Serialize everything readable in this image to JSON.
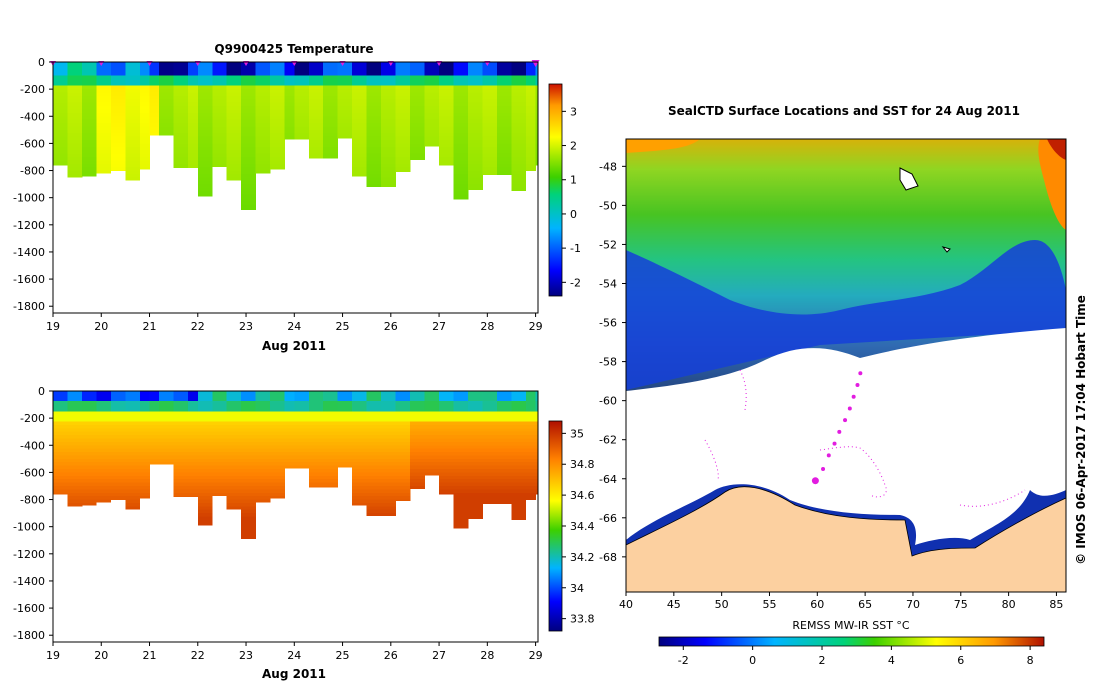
{
  "chart_data": [
    {
      "type": "heatmap",
      "title": "Q9900425  Temperature",
      "xlabel": "Aug 2011",
      "ylabel": "",
      "x_ticks": [
        "19",
        "20",
        "21",
        "22",
        "23",
        "24",
        "25",
        "26",
        "27",
        "28",
        "29"
      ],
      "xlim": [
        19,
        29.05
      ],
      "y_ticks": [
        "0",
        "-200",
        "-400",
        "-600",
        "-800",
        "-1000",
        "-1200",
        "-1400",
        "-1600",
        "-1800"
      ],
      "ylim": [
        -1850,
        0
      ],
      "profile_times": [
        19.0,
        19.3,
        19.6,
        19.9,
        20.2,
        20.5,
        20.8,
        21.0,
        21.2,
        21.5,
        21.8,
        22.0,
        22.3,
        22.6,
        22.9,
        23.2,
        23.5,
        23.8,
        24.0,
        24.3,
        24.6,
        24.9,
        25.2,
        25.5,
        25.8,
        26.1,
        26.4,
        26.7,
        27.0,
        27.3,
        27.6,
        27.9,
        28.2,
        28.5,
        28.8,
        29.0
      ],
      "profile_max_depth": [
        -760,
        -850,
        -840,
        -820,
        -800,
        -870,
        -790,
        -540,
        -540,
        -780,
        -780,
        -990,
        -770,
        -870,
        -1090,
        -820,
        -790,
        -570,
        -570,
        -710,
        -710,
        -560,
        -840,
        -920,
        -920,
        -810,
        -720,
        -620,
        -760,
        -1010,
        -940,
        -830,
        -830,
        -950,
        -800,
        -760
      ],
      "surface_markers_day": [
        19.0,
        20.0,
        21.0,
        22.0,
        23.0,
        24.0,
        25.0,
        26.0,
        27.0,
        28.0,
        29.0
      ],
      "colorbar": {
        "ticks": [
          "3",
          "2",
          "1",
          "0",
          "-1",
          "-2"
        ],
        "range": [
          -2.4,
          3.8
        ]
      }
    },
    {
      "type": "heatmap",
      "title": "",
      "xlabel": "Aug 2011",
      "ylabel": "",
      "x_ticks": [
        "19",
        "20",
        "21",
        "22",
        "23",
        "24",
        "25",
        "26",
        "27",
        "28",
        "29"
      ],
      "xlim": [
        19,
        29.05
      ],
      "y_ticks": [
        "0",
        "-200",
        "-400",
        "-600",
        "-800",
        "-1000",
        "-1200",
        "-1400",
        "-1600",
        "-1800"
      ],
      "ylim": [
        -1850,
        0
      ],
      "colorbar": {
        "ticks": [
          "35",
          "34.8",
          "34.6",
          "34.4",
          "34.2",
          "34",
          "33.8"
        ],
        "range": [
          33.72,
          35.08
        ]
      }
    },
    {
      "type": "heatmap",
      "title": "SealCTD Surface Locations and SST for 24 Aug 2011",
      "xlabel": "",
      "ylabel": "",
      "x_ticks": [
        "40",
        "45",
        "50",
        "55",
        "60",
        "65",
        "70",
        "75",
        "80",
        "85"
      ],
      "xlim": [
        40,
        86
      ],
      "y_ticks": [
        "-48",
        "-50",
        "-52",
        "-54",
        "-56",
        "-58",
        "-60",
        "-62",
        "-64",
        "-66",
        "-68"
      ],
      "ylim": [
        -69.8,
        -46.6
      ],
      "track_lon": [
        59.8,
        60.6,
        61.2,
        61.8,
        62.3,
        62.9,
        63.4,
        63.8,
        64.2,
        64.5
      ],
      "track_lat": [
        -64.1,
        -63.5,
        -62.8,
        -62.2,
        -61.6,
        -61.0,
        -60.4,
        -59.8,
        -59.2,
        -58.6
      ],
      "current_position": {
        "lon": 59.8,
        "lat": -64.1
      },
      "colorbar": {
        "label": "REMSS MW-IR SST °C",
        "ticks": [
          "-2",
          "0",
          "2",
          "4",
          "6",
          "8"
        ],
        "range": [
          -2.7,
          8.4
        ]
      }
    }
  ],
  "credit": "© IMOS 06-Apr-2017 17:04 Hobart Time",
  "colors": {
    "marker": "#e21ce0",
    "land": "#fcd0a0",
    "frame": "#000000"
  }
}
